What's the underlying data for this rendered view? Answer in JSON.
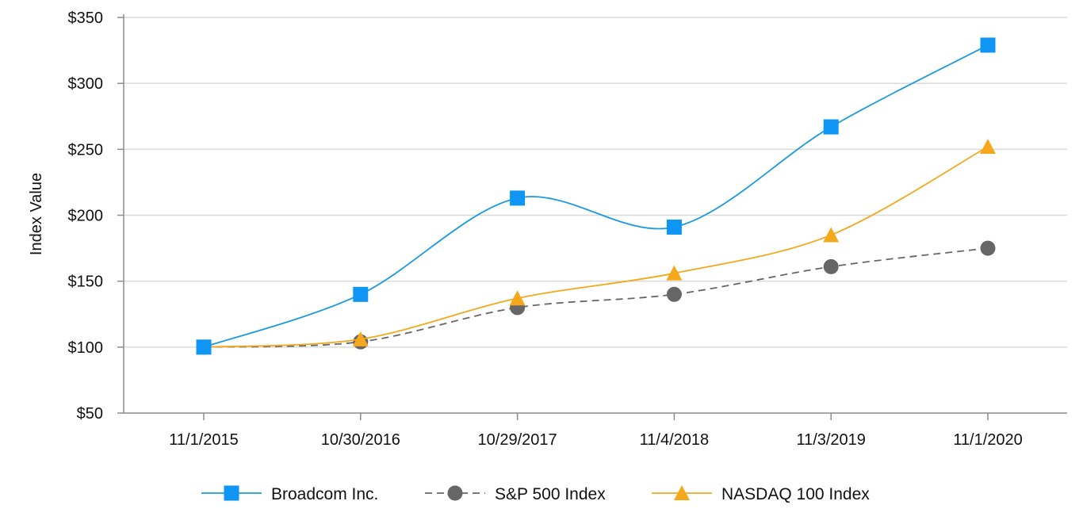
{
  "chart_data": {
    "type": "line",
    "title": "",
    "xlabel": "",
    "ylabel": "Index Value",
    "categories": [
      "11/1/2015",
      "10/30/2016",
      "10/29/2017",
      "11/4/2018",
      "11/3/2019",
      "11/1/2020"
    ],
    "ylim": [
      50,
      350
    ],
    "yticks": [
      50,
      100,
      150,
      200,
      250,
      300,
      350
    ],
    "ytick_labels": [
      "$50",
      "$100",
      "$150",
      "$200",
      "$250",
      "$300",
      "$350"
    ],
    "grid": true,
    "legend_position": "bottom",
    "series": [
      {
        "name": "Broadcom Inc.",
        "values": [
          100,
          140,
          213,
          191,
          267,
          329
        ],
        "color": "#1a9be0",
        "marker_color": "#0f96f5",
        "marker": "square",
        "dash": "solid"
      },
      {
        "name": "S&P 500 Index",
        "values": [
          100,
          104,
          130,
          140,
          161,
          175
        ],
        "color": "#666666",
        "marker_color": "#666666",
        "marker": "circle",
        "dash": "dashed"
      },
      {
        "name": "NASDAQ 100 Index",
        "values": [
          100,
          106,
          137,
          156,
          185,
          252
        ],
        "color": "#f2a91d",
        "marker_color": "#f5a81c",
        "marker": "triangle",
        "dash": "solid"
      }
    ]
  }
}
